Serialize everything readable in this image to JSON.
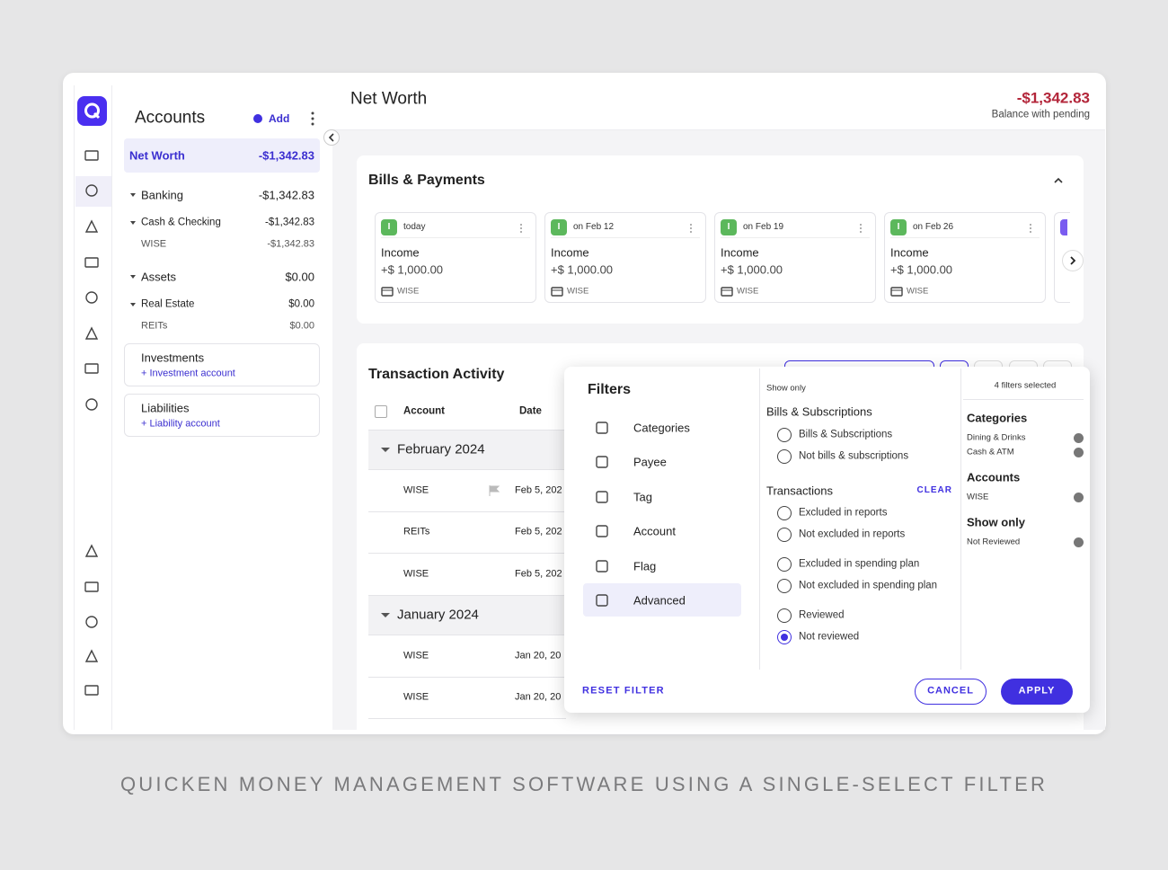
{
  "sidebar": {
    "title": "Accounts",
    "add": "Add",
    "net_worth": {
      "label": "Net Worth",
      "value": "-$1,342.83"
    },
    "banking": {
      "label": "Banking",
      "value": "-$1,342.83"
    },
    "cash_checking": {
      "label": "Cash & Checking",
      "value": "-$1,342.83"
    },
    "wise": {
      "label": "WISE",
      "value": "-$1,342.83"
    },
    "assets": {
      "label": "Assets",
      "value": "$0.00"
    },
    "real_estate": {
      "label": "Real Estate",
      "value": "$0.00"
    },
    "reits": {
      "label": "REITs",
      "value": "$0.00"
    },
    "investments": {
      "label": "Investments",
      "link": "+ Investment account"
    },
    "liabilities": {
      "label": "Liabilities",
      "link": "+ Liability account"
    }
  },
  "header": {
    "title": "Net Worth",
    "balance": "-$1,342.83",
    "balance_note": "Balance with pending"
  },
  "bills": {
    "title": "Bills & Payments",
    "cards": [
      {
        "badge": "I",
        "date": "today",
        "name": "Income",
        "amount": "+$ 1,000.00",
        "account": "WISE"
      },
      {
        "badge": "I",
        "date": "on Feb 12",
        "name": "Income",
        "amount": "+$ 1,000.00",
        "account": "WISE"
      },
      {
        "badge": "I",
        "date": "on Feb 19",
        "name": "Income",
        "amount": "+$ 1,000.00",
        "account": "WISE"
      },
      {
        "badge": "I",
        "date": "on Feb 26",
        "name": "Income",
        "amount": "+$ 1,000.00",
        "account": "WISE"
      }
    ]
  },
  "transactions": {
    "title": "Transaction Activity",
    "columns": [
      "Account",
      "Date"
    ],
    "groups": [
      {
        "label": "February 2024",
        "rows": [
          {
            "account": "WISE",
            "date": "Feb 5, 202"
          },
          {
            "account": "REITs",
            "date": "Feb 5, 202"
          },
          {
            "account": "WISE",
            "date": "Feb 5, 202"
          }
        ]
      },
      {
        "label": "January 2024",
        "rows": [
          {
            "account": "WISE",
            "date": "Jan 20, 20"
          },
          {
            "account": "WISE",
            "date": "Jan 20, 20"
          }
        ]
      }
    ]
  },
  "filters": {
    "title": "Filters",
    "menu": [
      {
        "label": "Categories"
      },
      {
        "label": "Payee"
      },
      {
        "label": "Tag"
      },
      {
        "label": "Account"
      },
      {
        "label": "Flag"
      },
      {
        "label": "Advanced",
        "active": true
      }
    ],
    "show_only": "Show only",
    "bills_group": {
      "title": "Bills & Subscriptions",
      "options": [
        {
          "label": "Bills & Subscriptions"
        },
        {
          "label": "Not bills & subscriptions"
        }
      ]
    },
    "transactions_group": {
      "title": "Transactions",
      "clear": "CLEAR",
      "options": [
        {
          "label": "Excluded in reports"
        },
        {
          "label": "Not excluded in reports"
        },
        {
          "label": "Excluded in spending plan"
        },
        {
          "label": "Not excluded in spending plan"
        },
        {
          "label": "Reviewed"
        },
        {
          "label": "Not reviewed",
          "checked": true
        }
      ]
    },
    "summary": {
      "count": "4 filters selected",
      "sections": [
        {
          "title": "Categories",
          "items": [
            "Dining & Drinks",
            "Cash & ATM"
          ]
        },
        {
          "title": "Accounts",
          "items": [
            "WISE"
          ]
        },
        {
          "title": "Show only",
          "items": [
            "Not Reviewed"
          ]
        }
      ]
    },
    "reset": "RESET FILTER",
    "cancel": "CANCEL",
    "apply": "APPLY"
  },
  "caption": "QUICKEN MONEY MANAGEMENT SOFTWARE USING A SINGLE-SELECT FILTER"
}
